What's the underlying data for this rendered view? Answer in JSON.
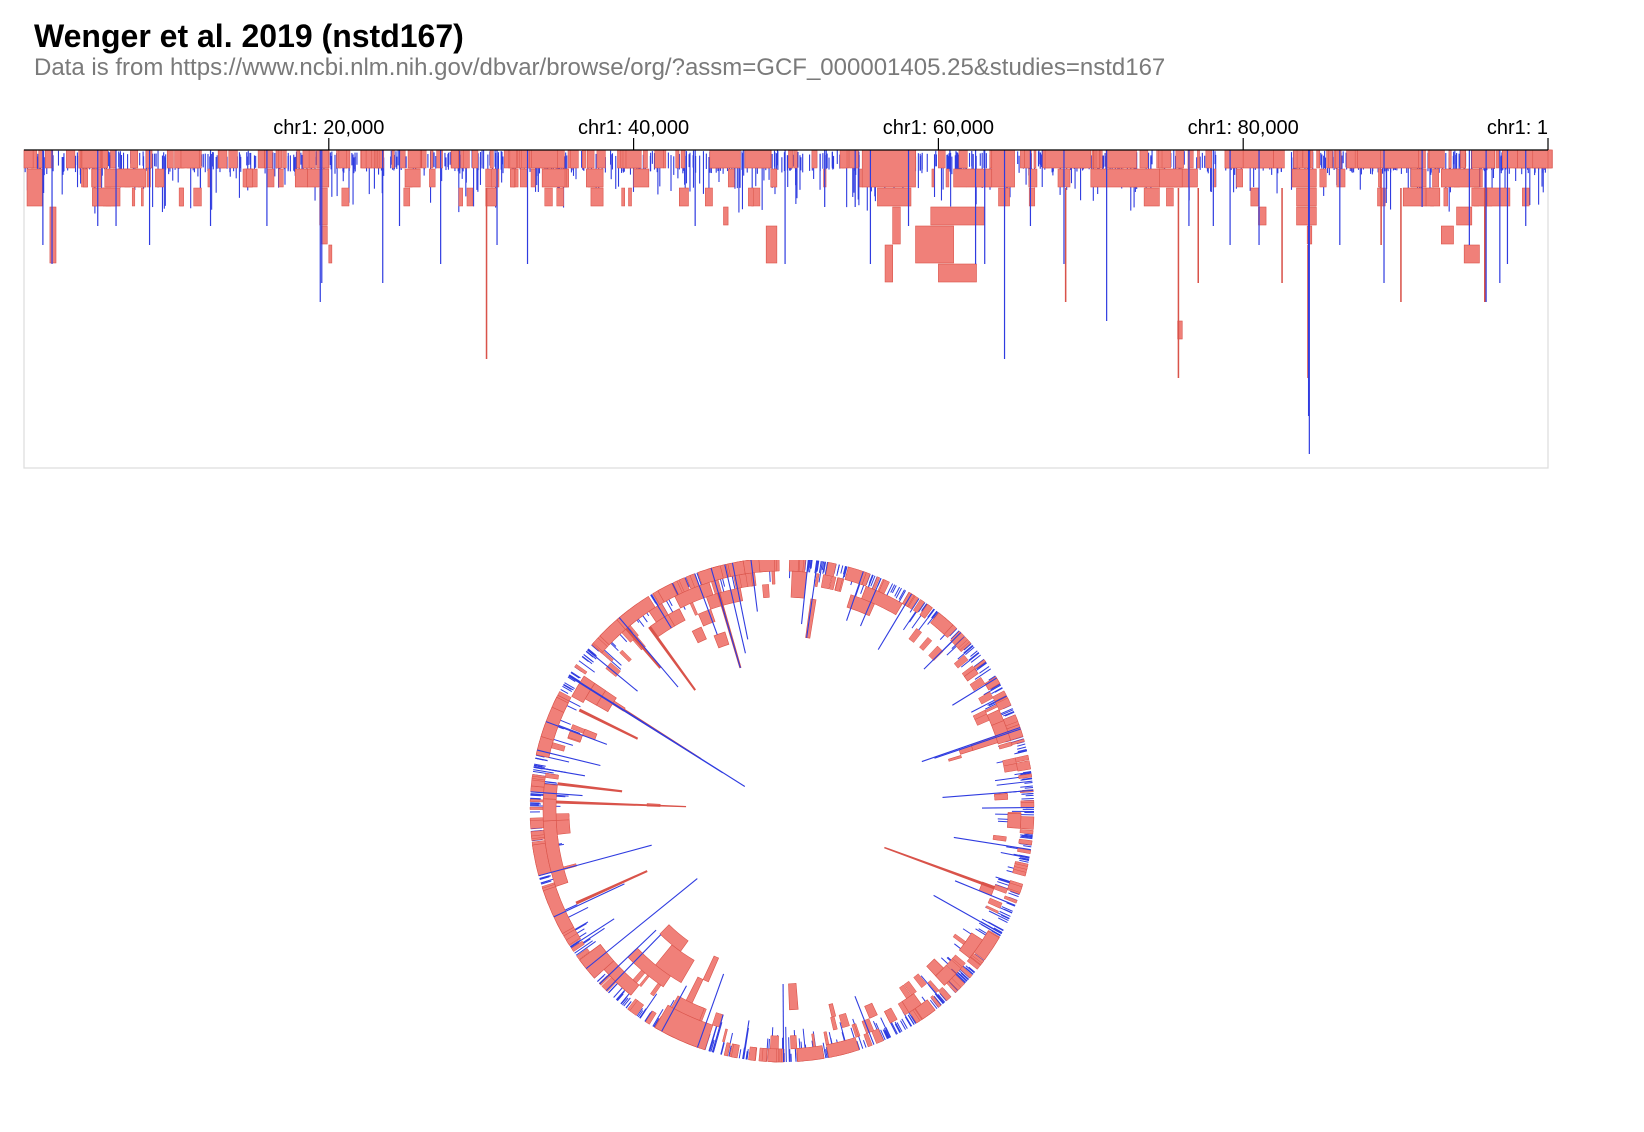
{
  "header": {
    "title": "Wenger et al. 2019 (nstd167)",
    "subtitle": "Data is from https://www.ncbi.nlm.nih.gov/dbvar/browse/org/?assm=GCF_000001405.25&studies=nstd167"
  },
  "colors": {
    "deletion": "#f08079",
    "deletion_stroke": "#d9534a",
    "insertion": "#2f3ce0",
    "axis": "#000000",
    "frame": "#dcdcdc"
  },
  "chart_data": [
    {
      "type": "linear_genome_track",
      "chromosome": "chr1",
      "x_range": [
        0,
        100000
      ],
      "ticks": [
        {
          "position": 20000,
          "label": "chr1: 20,000"
        },
        {
          "position": 40000,
          "label": "chr1: 40,000"
        },
        {
          "position": 60000,
          "label": "chr1: 60,000"
        },
        {
          "position": 80000,
          "label": "chr1: 80,000"
        },
        {
          "position": 100000,
          "label": "chr1: 1"
        }
      ],
      "legend": "none",
      "note_series": [
        "deletion (red, wide)",
        "insertion (blue, narrow)"
      ]
    },
    {
      "type": "circular_genome_track",
      "chromosome": "chr1",
      "x_range": [
        0,
        100000
      ],
      "legend": "none"
    }
  ],
  "segments": {
    "deletion_major": [
      [
        0,
        600,
        0,
        1
      ],
      [
        200,
        1200,
        1,
        3
      ],
      [
        1700,
        2100,
        3,
        6
      ],
      [
        3800,
        5000,
        0,
        1
      ],
      [
        4500,
        6300,
        2,
        3
      ],
      [
        5300,
        8000,
        1,
        2
      ],
      [
        8000,
        8400,
        0,
        1
      ],
      [
        9400,
        9800,
        0,
        1
      ],
      [
        10300,
        11500,
        0,
        1
      ],
      [
        14600,
        15000,
        1,
        2
      ],
      [
        15800,
        16300,
        0,
        1
      ],
      [
        17800,
        18600,
        1,
        2
      ],
      [
        19200,
        20000,
        0,
        1
      ],
      [
        18600,
        20000,
        1,
        2
      ],
      [
        19400,
        19900,
        2,
        4
      ],
      [
        19500,
        19900,
        4,
        5
      ],
      [
        20000,
        20200,
        5,
        6
      ],
      [
        25200,
        26000,
        0,
        1
      ],
      [
        25000,
        26000,
        1,
        2
      ],
      [
        30300,
        31000,
        2,
        3
      ],
      [
        33300,
        35000,
        0,
        1
      ],
      [
        34000,
        35500,
        1,
        2
      ],
      [
        36900,
        38000,
        1,
        2
      ],
      [
        37200,
        38000,
        2,
        3
      ],
      [
        39500,
        40500,
        0,
        1
      ],
      [
        40000,
        41000,
        1,
        2
      ],
      [
        43000,
        43600,
        2,
        3
      ],
      [
        45000,
        47000,
        0,
        1
      ],
      [
        47300,
        49000,
        0,
        1
      ],
      [
        49000,
        49400,
        1,
        2
      ],
      [
        45900,
        46200,
        3,
        4
      ],
      [
        48700,
        49400,
        4,
        6
      ],
      [
        55000,
        58500,
        0,
        2
      ],
      [
        56000,
        58200,
        2,
        3
      ],
      [
        57000,
        57500,
        3,
        5
      ],
      [
        56500,
        57000,
        5,
        7
      ],
      [
        59500,
        63000,
        3,
        4
      ],
      [
        58500,
        61000,
        4,
        6
      ],
      [
        60000,
        62500,
        6,
        7
      ],
      [
        61000,
        63500,
        1,
        2
      ],
      [
        63500,
        65000,
        0,
        2
      ],
      [
        67000,
        70000,
        0,
        1
      ],
      [
        71000,
        73000,
        0,
        1
      ],
      [
        70000,
        74500,
        1,
        2
      ],
      [
        74500,
        76000,
        1,
        2
      ],
      [
        76000,
        77000,
        1,
        2
      ],
      [
        73500,
        74500,
        2,
        3
      ],
      [
        75700,
        76000,
        9,
        10
      ],
      [
        78800,
        80000,
        0,
        1
      ],
      [
        80000,
        82000,
        0,
        1
      ],
      [
        82000,
        82700,
        0,
        1
      ],
      [
        80500,
        81000,
        2,
        3
      ],
      [
        81000,
        81500,
        3,
        4
      ],
      [
        83200,
        84800,
        1,
        2
      ],
      [
        83500,
        84800,
        2,
        3
      ],
      [
        83500,
        84800,
        3,
        4
      ],
      [
        84200,
        84500,
        4,
        5
      ],
      [
        87500,
        90000,
        0,
        1
      ],
      [
        89000,
        91500,
        0,
        1
      ],
      [
        91000,
        92000,
        1,
        2
      ],
      [
        90500,
        92000,
        2,
        3
      ],
      [
        92200,
        93200,
        0,
        1
      ],
      [
        93000,
        95500,
        1,
        2
      ],
      [
        92000,
        92900,
        2,
        3
      ],
      [
        94000,
        95000,
        3,
        4
      ],
      [
        95000,
        96000,
        2,
        3
      ],
      [
        96000,
        97500,
        2,
        3
      ],
      [
        93000,
        93800,
        4,
        5
      ],
      [
        94500,
        95500,
        5,
        6
      ],
      [
        95000,
        96500,
        0,
        1
      ],
      [
        97000,
        98000,
        0,
        1
      ],
      [
        98000,
        99800,
        0,
        1
      ],
      [
        99000,
        100000,
        0,
        1
      ]
    ],
    "deletion_tall": [
      [
        30300,
        30400,
        2,
        11
      ],
      [
        75700,
        75800,
        2,
        12
      ],
      [
        84200,
        84300,
        5,
        12
      ],
      [
        90300,
        90400,
        2,
        8
      ],
      [
        95800,
        95900,
        2,
        8
      ],
      [
        82500,
        82600,
        2,
        7
      ],
      [
        89000,
        89100,
        1,
        5
      ],
      [
        77000,
        77100,
        2,
        7
      ],
      [
        68300,
        68400,
        2,
        8
      ]
    ],
    "insertion_tall": [
      [
        84300,
        16
      ],
      [
        84250,
        14
      ],
      [
        64300,
        11
      ],
      [
        71000,
        9
      ],
      [
        89200,
        7
      ],
      [
        95900,
        8
      ],
      [
        97300,
        6
      ],
      [
        23500,
        7
      ],
      [
        27300,
        6
      ],
      [
        19500,
        7
      ],
      [
        19400,
        8
      ],
      [
        33000,
        6
      ],
      [
        1800,
        6
      ],
      [
        8200,
        5
      ],
      [
        24600,
        4
      ],
      [
        4800,
        4
      ],
      [
        6000,
        4
      ],
      [
        31000,
        5
      ],
      [
        49900,
        6
      ],
      [
        55500,
        6
      ],
      [
        62400,
        6
      ],
      [
        63000,
        6
      ],
      [
        68200,
        6
      ],
      [
        76400,
        4
      ],
      [
        78000,
        4
      ],
      [
        79100,
        5
      ],
      [
        81000,
        5
      ],
      [
        86300,
        5
      ],
      [
        91700,
        3
      ],
      [
        94800,
        5
      ],
      [
        96800,
        7
      ],
      [
        98500,
        4
      ],
      [
        1200,
        5
      ],
      [
        15900,
        4
      ],
      [
        12200,
        4
      ],
      [
        44000,
        4
      ],
      [
        52500,
        3
      ],
      [
        54500,
        3
      ],
      [
        58000,
        4
      ],
      [
        66000,
        4
      ]
    ]
  }
}
